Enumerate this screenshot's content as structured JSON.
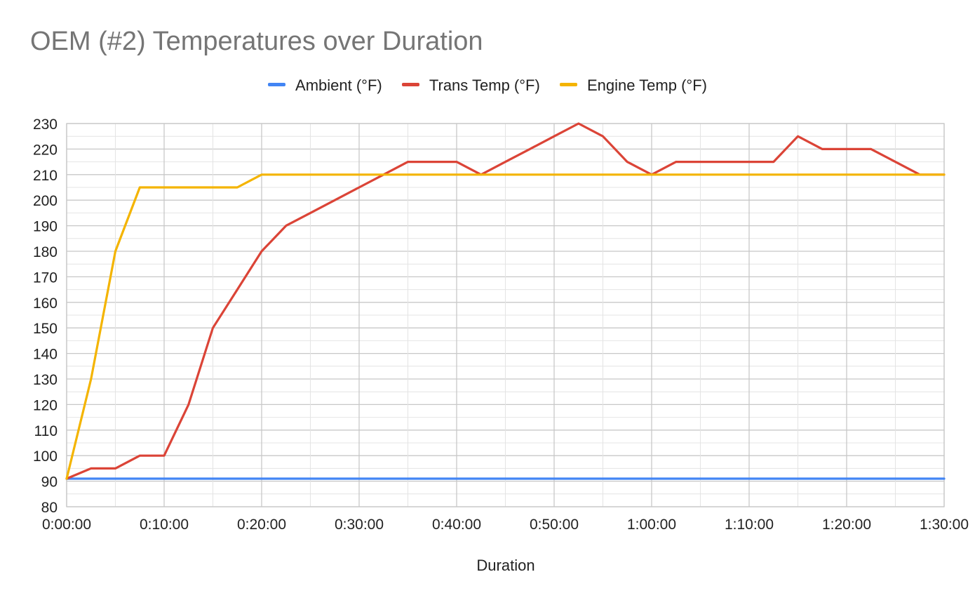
{
  "chart_data": {
    "type": "line",
    "title": "OEM (#2) Temperatures over Duration",
    "xlabel": "Duration",
    "ylabel": "",
    "ylim": [
      80,
      230
    ],
    "yticks": [
      80,
      90,
      100,
      110,
      120,
      130,
      140,
      150,
      160,
      170,
      180,
      190,
      200,
      210,
      220,
      230
    ],
    "xlim_minutes": [
      0,
      90
    ],
    "xticks": [
      "0:00:00",
      "0:10:00",
      "0:20:00",
      "0:30:00",
      "0:40:00",
      "0:50:00",
      "1:00:00",
      "1:10:00",
      "1:20:00",
      "1:30:00"
    ],
    "x_minutes": [
      0,
      2.5,
      5,
      7.5,
      10,
      12.5,
      15,
      17.5,
      20,
      22.5,
      25,
      27.5,
      30,
      32.5,
      35,
      37.5,
      40,
      42.5,
      45,
      47.5,
      50,
      52.5,
      55,
      57.5,
      60,
      62.5,
      65,
      67.5,
      70,
      72.5,
      75,
      77.5,
      80,
      82.5,
      85,
      87.5,
      90
    ],
    "grid": true,
    "legend_position": "top",
    "series": [
      {
        "name": "Ambient (°F)",
        "color": "#4285f4",
        "values": [
          91,
          91,
          91,
          91,
          91,
          91,
          91,
          91,
          91,
          91,
          91,
          91,
          91,
          91,
          91,
          91,
          91,
          91,
          91,
          91,
          91,
          91,
          91,
          91,
          91,
          91,
          91,
          91,
          91,
          91,
          91,
          91,
          91,
          91,
          91,
          91,
          91
        ]
      },
      {
        "name": "Trans Temp (°F)",
        "color": "#db4437",
        "values": [
          91,
          95,
          95,
          100,
          100,
          120,
          150,
          165,
          180,
          190,
          195,
          200,
          205,
          210,
          215,
          215,
          215,
          210,
          215,
          220,
          225,
          230,
          225,
          215,
          210,
          215,
          215,
          215,
          215,
          215,
          225,
          220,
          220,
          220,
          215,
          210,
          210
        ]
      },
      {
        "name": "Engine Temp (°F)",
        "color": "#f4b400",
        "values": [
          91,
          130,
          180,
          205,
          205,
          205,
          205,
          205,
          210,
          210,
          210,
          210,
          210,
          210,
          210,
          210,
          210,
          210,
          210,
          210,
          210,
          210,
          210,
          210,
          210,
          210,
          210,
          210,
          210,
          210,
          210,
          210,
          210,
          210,
          210,
          210,
          210
        ]
      }
    ]
  }
}
